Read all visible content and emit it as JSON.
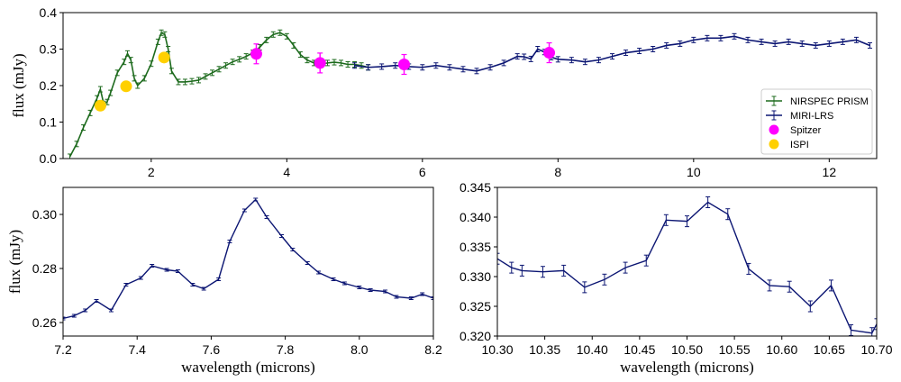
{
  "chart_data": [
    {
      "type": "line",
      "xlabel": "",
      "ylabel": "flux (mJy)",
      "xlim": [
        0.7,
        12.7
      ],
      "ylim": [
        0,
        0.4
      ],
      "xticks": [
        2,
        4,
        6,
        8,
        10,
        12
      ],
      "yticks": [
        0.0,
        0.1,
        0.2,
        0.3,
        0.4
      ],
      "ytick_labels": [
        "0.0",
        "0.1",
        "0.2",
        "0.3",
        "0.4"
      ],
      "legend": {
        "placement": "lower-right",
        "entries": [
          "NIRSPEC PRISM",
          "MIRI-LRS",
          "Spitzer",
          "ISPI"
        ]
      },
      "series": [
        {
          "name": "NIRSPEC PRISM",
          "color": "#1e6b1e",
          "marker": "errorbar",
          "x": [
            0.8,
            0.9,
            1.0,
            1.1,
            1.2,
            1.25,
            1.3,
            1.35,
            1.4,
            1.5,
            1.6,
            1.65,
            1.7,
            1.75,
            1.8,
            1.9,
            2.0,
            2.1,
            2.15,
            2.2,
            2.25,
            2.3,
            2.4,
            2.5,
            2.6,
            2.7,
            2.8,
            2.9,
            3.0,
            3.1,
            3.2,
            3.3,
            3.4,
            3.5,
            3.6,
            3.7,
            3.8,
            3.9,
            4.0,
            4.1,
            4.2,
            4.3,
            4.4,
            4.5,
            4.6,
            4.7,
            4.8,
            4.9,
            5.0,
            5.1,
            5.2
          ],
          "y": [
            0.005,
            0.04,
            0.085,
            0.125,
            0.165,
            0.19,
            0.15,
            0.155,
            0.18,
            0.235,
            0.265,
            0.288,
            0.27,
            0.22,
            0.2,
            0.22,
            0.26,
            0.32,
            0.345,
            0.34,
            0.3,
            0.24,
            0.21,
            0.21,
            0.212,
            0.215,
            0.225,
            0.235,
            0.245,
            0.255,
            0.265,
            0.272,
            0.28,
            0.29,
            0.305,
            0.325,
            0.34,
            0.345,
            0.335,
            0.31,
            0.285,
            0.27,
            0.262,
            0.258,
            0.262,
            0.264,
            0.262,
            0.258,
            0.258,
            0.255,
            0.25
          ]
        },
        {
          "name": "MIRI-LRS",
          "color": "#0c1673",
          "marker": "errorbar",
          "x": [
            5.0,
            5.2,
            5.4,
            5.6,
            5.8,
            6.0,
            6.2,
            6.4,
            6.6,
            6.8,
            7.0,
            7.2,
            7.4,
            7.5,
            7.6,
            7.7,
            7.8,
            7.9,
            8.0,
            8.2,
            8.4,
            8.6,
            8.8,
            9.0,
            9.2,
            9.4,
            9.6,
            9.8,
            10.0,
            10.2,
            10.4,
            10.6,
            10.8,
            11.0,
            11.2,
            11.4,
            11.6,
            11.8,
            12.0,
            12.2,
            12.4,
            12.6
          ],
          "y": [
            0.255,
            0.25,
            0.252,
            0.255,
            0.252,
            0.25,
            0.255,
            0.25,
            0.245,
            0.24,
            0.25,
            0.262,
            0.28,
            0.279,
            0.273,
            0.3,
            0.292,
            0.278,
            0.272,
            0.27,
            0.265,
            0.27,
            0.28,
            0.29,
            0.295,
            0.3,
            0.31,
            0.315,
            0.325,
            0.33,
            0.33,
            0.335,
            0.325,
            0.32,
            0.315,
            0.32,
            0.315,
            0.31,
            0.315,
            0.32,
            0.325,
            0.31
          ]
        },
        {
          "name": "Spitzer",
          "color": "#ff00ff",
          "marker": "circle",
          "x": [
            3.55,
            4.49,
            5.73,
            7.87
          ],
          "y": [
            0.287,
            0.262,
            0.258,
            0.29
          ]
        },
        {
          "name": "ISPI",
          "color": "#ffd000",
          "marker": "circle",
          "x": [
            1.25,
            1.63,
            2.19
          ],
          "y": [
            0.145,
            0.198,
            0.277
          ]
        }
      ]
    },
    {
      "type": "line",
      "xlabel": "wavelength (microns)",
      "ylabel": "flux (mJy)",
      "xlim": [
        7.2,
        8.2
      ],
      "ylim": [
        0.255,
        0.31
      ],
      "xticks": [
        7.2,
        7.4,
        7.6,
        7.8,
        8.0,
        8.2
      ],
      "xtick_labels": [
        "7.2",
        "7.4",
        "7.6",
        "7.8",
        "8.0",
        "8.2"
      ],
      "yticks": [
        0.26,
        0.28,
        0.3
      ],
      "ytick_labels": [
        "0.26",
        "0.28",
        "0.30"
      ],
      "series": [
        {
          "color": "#0c1673",
          "x": [
            7.2,
            7.23,
            7.26,
            7.29,
            7.33,
            7.37,
            7.41,
            7.44,
            7.48,
            7.51,
            7.55,
            7.58,
            7.62,
            7.65,
            7.69,
            7.72,
            7.75,
            7.79,
            7.82,
            7.86,
            7.89,
            7.93,
            7.96,
            8.0,
            8.03,
            8.07,
            8.1,
            8.14,
            8.17,
            8.2
          ],
          "y": [
            0.2615,
            0.2625,
            0.2645,
            0.268,
            0.2645,
            0.274,
            0.2765,
            0.281,
            0.2795,
            0.279,
            0.274,
            0.2725,
            0.276,
            0.29,
            0.3015,
            0.3055,
            0.299,
            0.292,
            0.287,
            0.282,
            0.2785,
            0.276,
            0.2745,
            0.273,
            0.272,
            0.2715,
            0.2695,
            0.269,
            0.2705,
            0.269
          ]
        }
      ]
    },
    {
      "type": "line",
      "xlabel": "wavelength (microns)",
      "ylabel": "",
      "xlim": [
        10.3,
        10.7
      ],
      "ylim": [
        0.32,
        0.345
      ],
      "xticks": [
        10.3,
        10.35,
        10.4,
        10.45,
        10.5,
        10.55,
        10.6,
        10.65,
        10.7
      ],
      "xtick_labels": [
        "10.30",
        "10.35",
        "10.40",
        "10.45",
        "10.50",
        "10.55",
        "10.60",
        "10.65",
        "10.70"
      ],
      "yticks": [
        0.32,
        0.325,
        0.33,
        0.335,
        0.34,
        0.345
      ],
      "ytick_labels": [
        "0.320",
        "0.325",
        "0.330",
        "0.335",
        "0.340",
        "0.345"
      ],
      "series": [
        {
          "color": "#0c1673",
          "x": [
            10.3,
            10.315,
            10.326,
            10.348,
            10.37,
            10.392,
            10.413,
            10.435,
            10.457,
            10.478,
            10.5,
            10.522,
            10.543,
            10.565,
            10.587,
            10.608,
            10.63,
            10.652,
            10.673,
            10.695,
            10.7
          ],
          "y": [
            0.333,
            0.3315,
            0.331,
            0.3308,
            0.331,
            0.3282,
            0.3295,
            0.3315,
            0.3327,
            0.3395,
            0.3393,
            0.3425,
            0.3405,
            0.3313,
            0.3285,
            0.3283,
            0.325,
            0.3285,
            0.321,
            0.3205,
            0.322
          ]
        }
      ]
    }
  ]
}
